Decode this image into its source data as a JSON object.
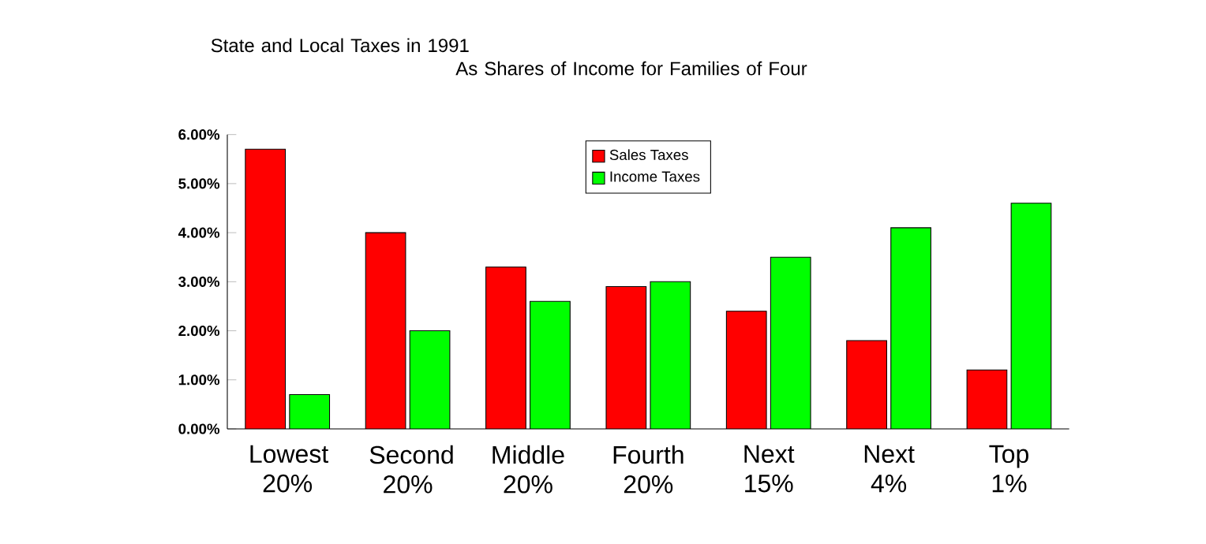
{
  "chart_data": {
    "type": "bar",
    "title": "State and Local Taxes in 1991\nAs Shares of Income for Families of Four",
    "categories": [
      "Lowest 20%",
      "Second 20%",
      "Middle 20%",
      "Fourth 20%",
      "Next 15%",
      "Next 4%",
      "Top 1%"
    ],
    "series": [
      {
        "name": "Sales Taxes",
        "color": "#ff0000",
        "values": [
          5.7,
          4.0,
          3.3,
          2.9,
          2.4,
          1.8,
          1.2
        ]
      },
      {
        "name": "Income Taxes",
        "color": "#00ff00",
        "values": [
          0.7,
          2.0,
          2.6,
          3.0,
          3.5,
          4.1,
          4.6
        ]
      }
    ],
    "ylim": [
      0,
      6
    ],
    "yticks": [
      {
        "value": 0,
        "label": "0.00%"
      },
      {
        "value": 1,
        "label": "1.00%"
      },
      {
        "value": 2,
        "label": "2.00%"
      },
      {
        "value": 3,
        "label": "3.00%"
      },
      {
        "value": 4,
        "label": "4.00%"
      },
      {
        "value": 5,
        "label": "5.00%"
      },
      {
        "value": 6,
        "label": "6.00%"
      }
    ],
    "legend": "top",
    "grid": false
  }
}
